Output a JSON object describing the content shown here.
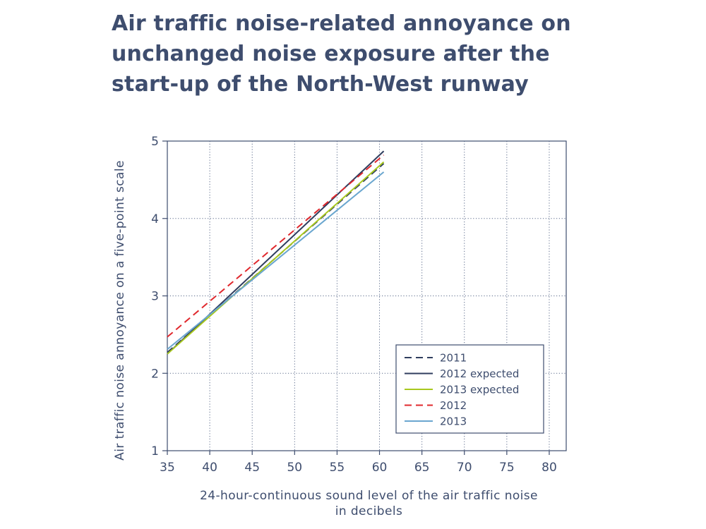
{
  "chart_data": {
    "type": "line",
    "title": [
      "Air traffic noise-related annoyance on",
      "unchanged noise exposure after the",
      "start-up of the North-West runway"
    ],
    "xlabel": [
      "24-hour-continuous sound level of the air traffic noise",
      "in decibels"
    ],
    "ylabel": "Air traffic noise annoyance on a five-point scale",
    "xlim": [
      35,
      82
    ],
    "ylim": [
      1,
      5
    ],
    "xticks": [
      "35",
      "40",
      "45",
      "50",
      "55",
      "60",
      "65",
      "70",
      "75",
      "80"
    ],
    "yticks": [
      "1",
      "2",
      "3",
      "4",
      "5"
    ],
    "grid": true,
    "legend_position": "bottom-right",
    "series": [
      {
        "name": "2011",
        "color": "#2f3d5e",
        "dash": "dashed",
        "x": [
          35,
          60.5
        ],
        "y": [
          2.27,
          4.71
        ]
      },
      {
        "name": "2012 expected",
        "color": "#2f3d5e",
        "dash": "solid",
        "x": [
          35,
          60.5
        ],
        "y": [
          2.25,
          4.87
        ]
      },
      {
        "name": "2013 expected",
        "color": "#a8c81e",
        "dash": "solid",
        "x": [
          35,
          60.5
        ],
        "y": [
          2.25,
          4.73
        ]
      },
      {
        "name": "2012",
        "color": "#e0282d",
        "dash": "dashed",
        "x": [
          35,
          60.5
        ],
        "y": [
          2.47,
          4.82
        ]
      },
      {
        "name": "2013",
        "color": "#6aa6cf",
        "dash": "solid",
        "x": [
          35,
          60.5
        ],
        "y": [
          2.31,
          4.6
        ]
      }
    ]
  }
}
